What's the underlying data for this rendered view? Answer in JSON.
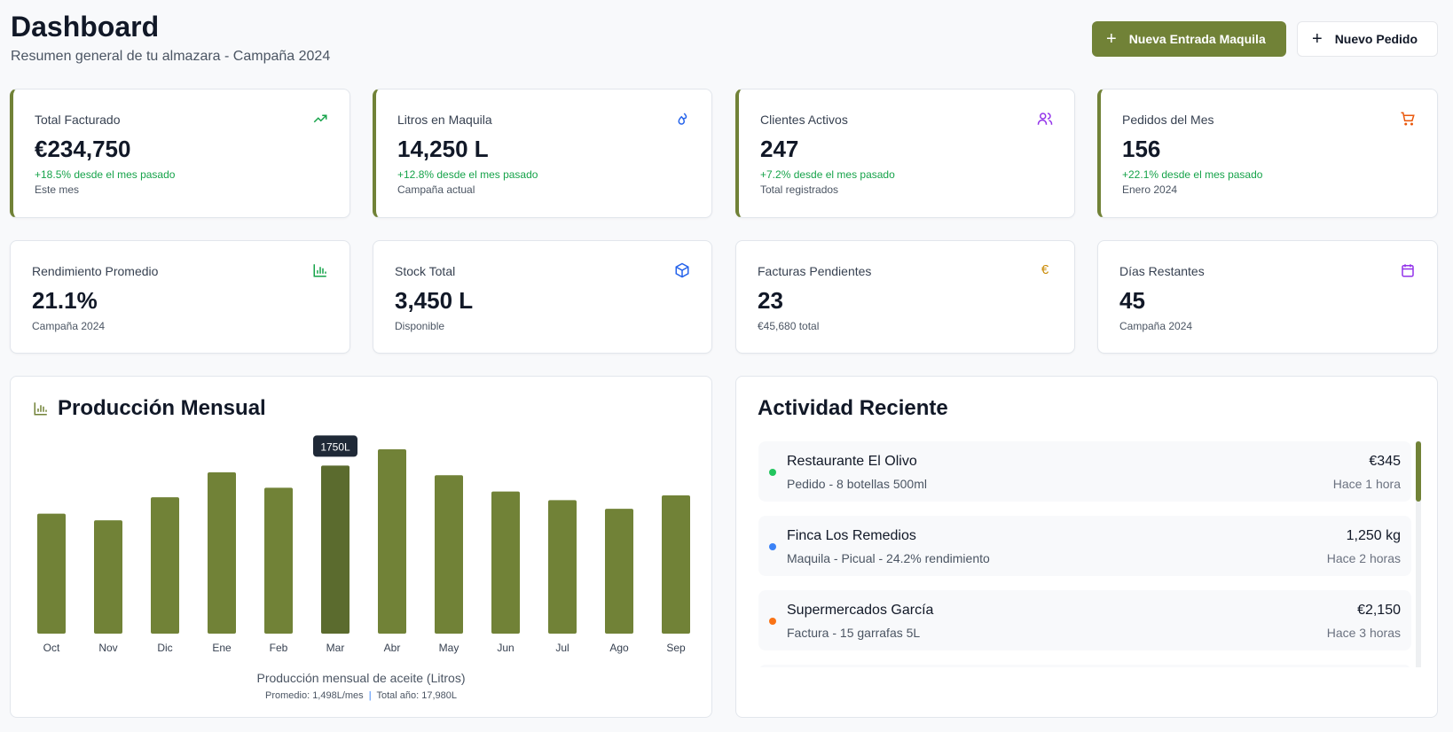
{
  "header": {
    "title": "Dashboard",
    "subtitle": "Resumen general de tu almazara - Campaña 2024",
    "primary_button": "Nueva Entrada Maquila",
    "secondary_button": "Nuevo Pedido",
    "plus": "+"
  },
  "stats_top": [
    {
      "label": "Total Facturado",
      "value": "€234,750",
      "change": "+18.5% desde el mes pasado",
      "sub": "Este mes",
      "icon": "trending-up-icon",
      "color": "#16a34a"
    },
    {
      "label": "Litros en Maquila",
      "value": "14,250 L",
      "change": "+12.8% desde el mes pasado",
      "sub": "Campaña actual",
      "icon": "droplets-icon",
      "color": "#2563eb"
    },
    {
      "label": "Clientes Activos",
      "value": "247",
      "change": "+7.2% desde el mes pasado",
      "sub": "Total registrados",
      "icon": "users-icon",
      "color": "#9333ea"
    },
    {
      "label": "Pedidos del Mes",
      "value": "156",
      "change": "+22.1% desde el mes pasado",
      "sub": "Enero 2024",
      "icon": "cart-icon",
      "color": "#ea580c"
    }
  ],
  "stats_bottom": [
    {
      "label": "Rendimiento Promedio",
      "value": "21.1%",
      "sub": "Campaña 2024",
      "icon": "bar-chart-icon",
      "color": "#16a34a"
    },
    {
      "label": "Stock Total",
      "value": "3,450 L",
      "sub": "Disponible",
      "icon": "package-icon",
      "color": "#2563eb"
    },
    {
      "label": "Facturas Pendientes",
      "value": "23",
      "sub": "€45,680 total",
      "icon": "euro-icon",
      "color": "#ca8a04"
    },
    {
      "label": "Días Restantes",
      "value": "45",
      "sub": "Campaña 2024",
      "icon": "calendar-icon",
      "color": "#9333ea"
    }
  ],
  "production": {
    "title": "Producción Mensual",
    "caption": "Producción mensual de aceite (Litros)",
    "avg": "Promedio: 1,498L/mes",
    "total": "Total año: 17,980L",
    "sep": "|"
  },
  "chart_data": {
    "type": "bar",
    "title": "Producción Mensual",
    "xlabel": "Producción mensual de aceite (Litros)",
    "ylabel": "",
    "categories": [
      "Oct",
      "Nov",
      "Dic",
      "Ene",
      "Feb",
      "Mar",
      "Abr",
      "May",
      "Jun",
      "Jul",
      "Ago",
      "Sep"
    ],
    "values": [
      1250,
      1180,
      1420,
      1680,
      1520,
      1750,
      1920,
      1650,
      1480,
      1390,
      1300,
      1440
    ],
    "highlight_index": 5,
    "tooltip": "1750L",
    "ylim": [
      0,
      1920
    ],
    "grid": false,
    "bar_color": "#718237",
    "highlight_color": "#5b6b2e"
  },
  "activity": {
    "title": "Actividad Reciente",
    "items": [
      {
        "name": "Restaurante El Olivo",
        "desc": "Pedido - 8 botellas 500ml",
        "amount": "€345",
        "time": "Hace 1 hora",
        "color": "#22c55e"
      },
      {
        "name": "Finca Los Remedios",
        "desc": "Maquila - Picual - 24.2% rendimiento",
        "amount": "1,250 kg",
        "time": "Hace 2 horas",
        "color": "#3b82f6"
      },
      {
        "name": "Supermercados García",
        "desc": "Factura - 15 garrafas 5L",
        "amount": "€2,150",
        "time": "Hace 3 horas",
        "color": "#f97316"
      }
    ]
  }
}
